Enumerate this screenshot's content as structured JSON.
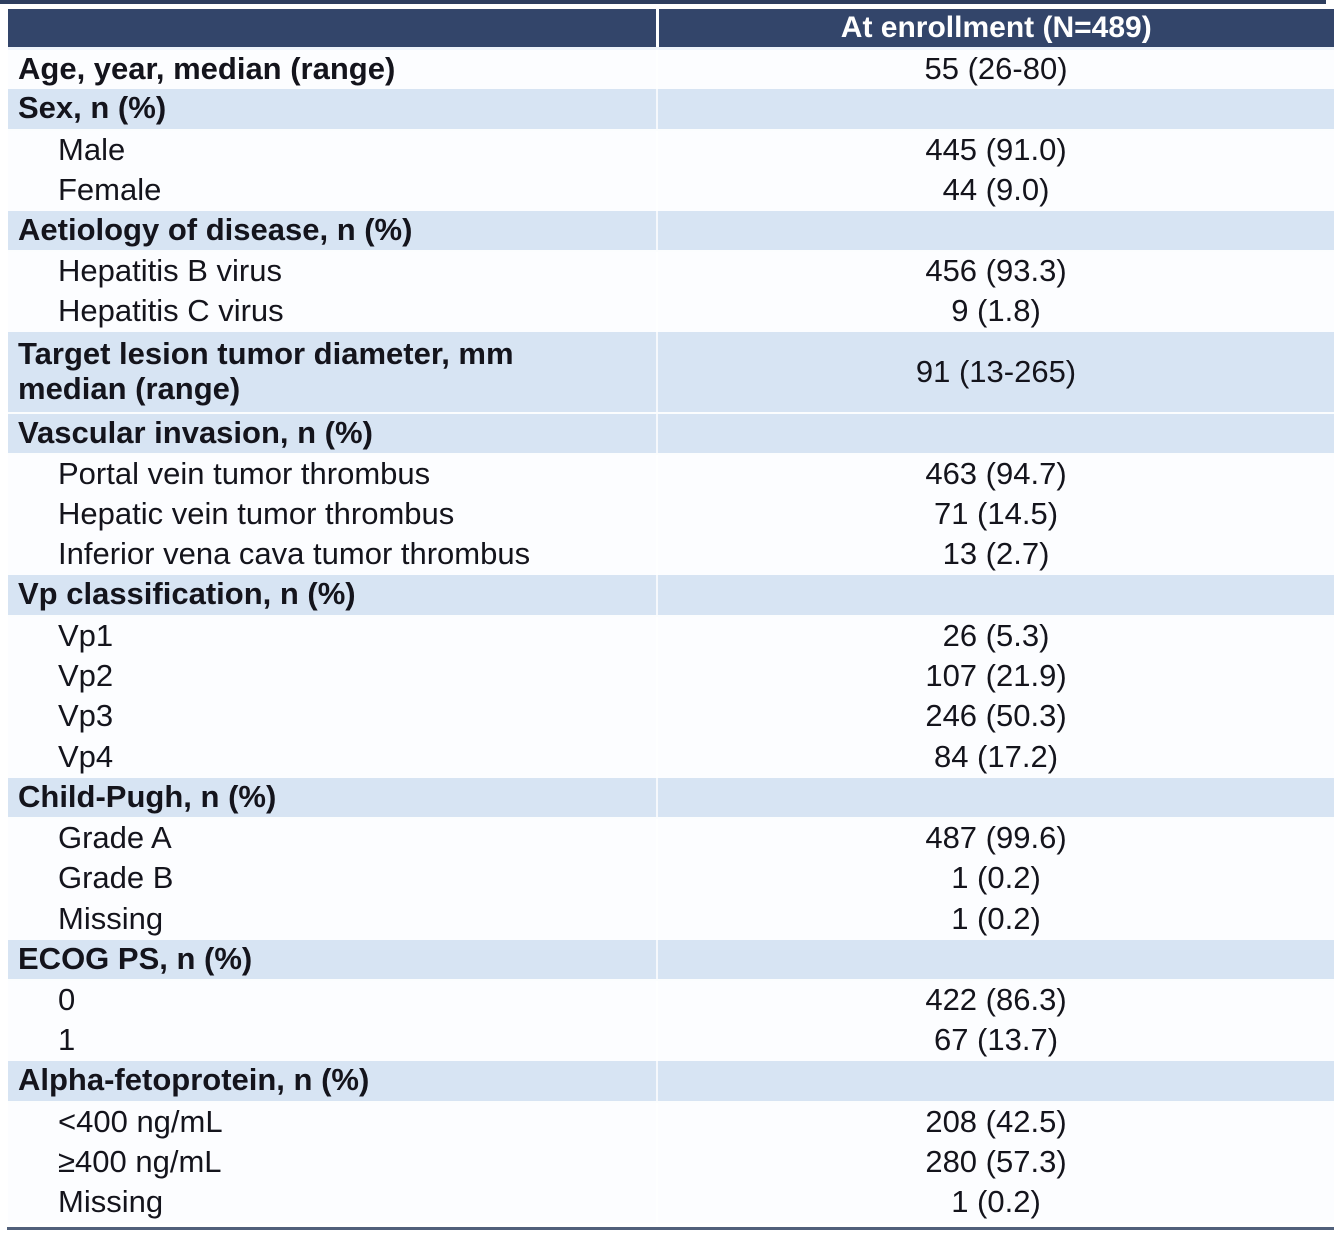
{
  "colors": {
    "header_background": "#33456a",
    "section_row_background": "#d7e4f3",
    "data_row_background": "#fcfdff",
    "header_text": "#ffffff",
    "body_text": "#14141c",
    "top_rule": "#2e3e5f",
    "bottom_rule": "#51607b"
  },
  "chart_data": {
    "type": "table",
    "title": "",
    "columns": [
      "",
      "At enrollment (N=489)"
    ],
    "rows": [
      {
        "kind": "metric",
        "label": "Age, year, median (range)",
        "value": "55 (26-80)"
      },
      {
        "kind": "section",
        "label": "Sex, n (%)",
        "value": ""
      },
      {
        "kind": "item",
        "label": "Male",
        "value": "445 (91.0)"
      },
      {
        "kind": "item",
        "label": "Female",
        "value": "44 (9.0)"
      },
      {
        "kind": "section",
        "label": "Aetiology of disease, n (%)",
        "value": ""
      },
      {
        "kind": "item",
        "label": "Hepatitis B virus",
        "value": "456 (93.3)"
      },
      {
        "kind": "item",
        "label": "Hepatitis C virus",
        "value": "9 (1.8)"
      },
      {
        "kind": "section-metric",
        "label": "Target lesion tumor diameter, mm",
        "label2": "median (range)",
        "value": "91 (13-265)"
      },
      {
        "kind": "section",
        "label": "Vascular invasion, n (%)",
        "value": ""
      },
      {
        "kind": "item",
        "label": "Portal vein tumor thrombus",
        "value": "463 (94.7)"
      },
      {
        "kind": "item",
        "label": "Hepatic vein tumor thrombus",
        "value": "71 (14.5)"
      },
      {
        "kind": "item",
        "label": "Inferior vena cava tumor thrombus",
        "value": "13 (2.7)"
      },
      {
        "kind": "section",
        "label": "Vp classification, n (%)",
        "value": ""
      },
      {
        "kind": "item",
        "label": "Vp1",
        "value": "26 (5.3)"
      },
      {
        "kind": "item",
        "label": "Vp2",
        "value": "107 (21.9)"
      },
      {
        "kind": "item",
        "label": "Vp3",
        "value": "246 (50.3)"
      },
      {
        "kind": "item",
        "label": "Vp4",
        "value": "84 (17.2)"
      },
      {
        "kind": "section",
        "label": "Child-Pugh, n (%)",
        "value": ""
      },
      {
        "kind": "item",
        "label": "Grade A",
        "value": "487 (99.6)"
      },
      {
        "kind": "item",
        "label": "Grade B",
        "value": "1 (0.2)"
      },
      {
        "kind": "item",
        "label": "Missing",
        "value": "1 (0.2)"
      },
      {
        "kind": "section",
        "label": "ECOG PS, n (%)",
        "value": ""
      },
      {
        "kind": "item",
        "label": "0",
        "value": "422 (86.3)"
      },
      {
        "kind": "item",
        "label": "1",
        "value": "67 (13.7)"
      },
      {
        "kind": "section",
        "label": "Alpha-fetoprotein, n (%)",
        "value": ""
      },
      {
        "kind": "item",
        "label": "<400 ng/mL",
        "value": "208 (42.5)"
      },
      {
        "kind": "item",
        "label": "≥400 ng/mL",
        "value": "280 (57.3)"
      },
      {
        "kind": "item",
        "label": "Missing",
        "value": "1 (0.2)"
      }
    ]
  }
}
